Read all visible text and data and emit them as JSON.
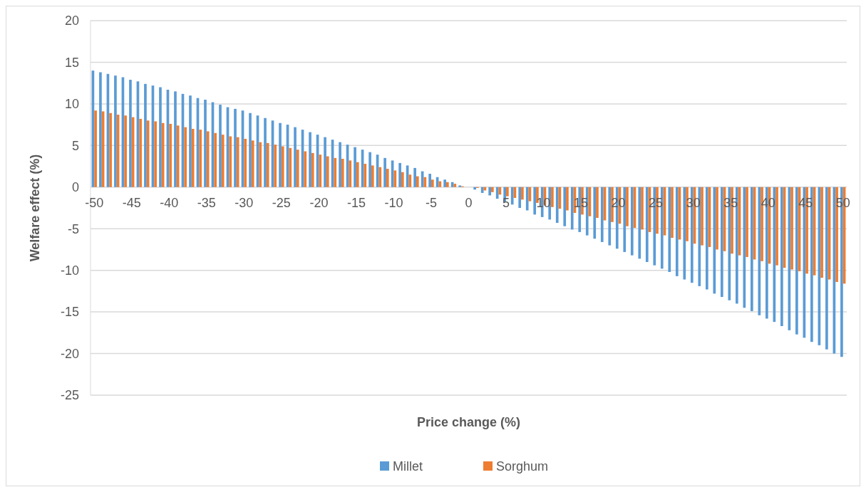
{
  "chart_data": {
    "type": "bar",
    "xlabel": "Price change (%)",
    "ylabel": "Welfare effect (%)",
    "categories": [
      "-50",
      null,
      null,
      null,
      null,
      "-45",
      null,
      null,
      null,
      null,
      "-40",
      null,
      null,
      null,
      null,
      "-35",
      null,
      null,
      null,
      null,
      "-30",
      null,
      null,
      null,
      null,
      "-25",
      null,
      null,
      null,
      null,
      "-20",
      null,
      null,
      null,
      null,
      "-15",
      null,
      null,
      null,
      null,
      "-10",
      null,
      null,
      null,
      null,
      "-5",
      null,
      null,
      null,
      null,
      "0",
      null,
      null,
      null,
      null,
      "5",
      null,
      null,
      null,
      null,
      "10",
      null,
      null,
      null,
      null,
      "15",
      null,
      null,
      null,
      null,
      "20",
      null,
      null,
      null,
      null,
      "25",
      null,
      null,
      null,
      null,
      "30",
      null,
      null,
      null,
      null,
      "35",
      null,
      null,
      null,
      null,
      "40",
      null,
      null,
      null,
      null,
      "45",
      null,
      null,
      null,
      null,
      "50"
    ],
    "series": [
      {
        "name": "Millet",
        "color": "#5b9bd5",
        "values": [
          14.0,
          13.8,
          13.6,
          13.4,
          13.2,
          12.9,
          12.7,
          12.4,
          12.2,
          12.0,
          11.7,
          11.5,
          11.2,
          11.0,
          10.7,
          10.5,
          10.2,
          9.9,
          9.6,
          9.4,
          9.2,
          8.9,
          8.6,
          8.3,
          8.0,
          7.7,
          7.5,
          7.2,
          6.9,
          6.6,
          6.3,
          6.0,
          5.7,
          5.4,
          5.1,
          4.8,
          4.5,
          4.2,
          3.9,
          3.5,
          3.2,
          2.9,
          2.6,
          2.3,
          1.9,
          1.6,
          1.2,
          0.9,
          0.6,
          0.2,
          0,
          -0.3,
          -0.7,
          -1.0,
          -1.4,
          -1.8,
          -2.1,
          -2.5,
          -2.8,
          -3.3,
          -3.6,
          -3.9,
          -4.3,
          -4.7,
          -5.1,
          -5.4,
          -5.8,
          -6.2,
          -6.6,
          -7.0,
          -7.4,
          -7.8,
          -8.2,
          -8.6,
          -9.0,
          -9.4,
          -9.8,
          -10.2,
          -10.7,
          -11.1,
          -11.5,
          -11.9,
          -12.3,
          -12.8,
          -13.2,
          -13.6,
          -14.0,
          -14.5,
          -14.9,
          -15.4,
          -15.8,
          -16.2,
          -16.7,
          -17.2,
          -17.7,
          -18.1,
          -18.6,
          -19.0,
          -19.5,
          -20.0,
          -20.4
        ]
      },
      {
        "name": "Sorghum",
        "color": "#ed7d31",
        "values": [
          9.2,
          9.1,
          8.9,
          8.7,
          8.6,
          8.4,
          8.2,
          8.0,
          7.9,
          7.7,
          7.6,
          7.4,
          7.2,
          7.0,
          6.9,
          6.7,
          6.5,
          6.3,
          6.1,
          6.0,
          5.8,
          5.6,
          5.4,
          5.3,
          5.1,
          4.9,
          4.7,
          4.5,
          4.3,
          4.1,
          3.9,
          3.7,
          3.5,
          3.4,
          3.2,
          3.0,
          2.8,
          2.6,
          2.4,
          2.2,
          2.0,
          1.8,
          1.5,
          1.3,
          1.2,
          0.9,
          0.7,
          0.6,
          0.4,
          0.1,
          0,
          -0.1,
          -0.4,
          -0.6,
          -0.9,
          -1.1,
          -1.3,
          -1.5,
          -1.7,
          -1.9,
          -2.2,
          -2.4,
          -2.6,
          -2.8,
          -3.1,
          -3.3,
          -3.5,
          -3.7,
          -4.0,
          -4.2,
          -4.4,
          -4.7,
          -4.9,
          -5.1,
          -5.4,
          -5.6,
          -5.8,
          -6.1,
          -6.3,
          -6.5,
          -6.8,
          -7.0,
          -7.2,
          -7.5,
          -7.7,
          -8.0,
          -8.2,
          -8.4,
          -8.7,
          -8.9,
          -9.2,
          -9.4,
          -9.7,
          -9.9,
          -10.1,
          -10.4,
          -10.6,
          -10.9,
          -11.1,
          -11.4,
          -11.6
        ]
      }
    ],
    "ylim": [
      -25,
      20
    ],
    "yticks": [
      -25,
      -20,
      -15,
      -10,
      -5,
      0,
      5,
      10,
      15,
      20
    ],
    "grid": "y",
    "legend": "bottom"
  }
}
